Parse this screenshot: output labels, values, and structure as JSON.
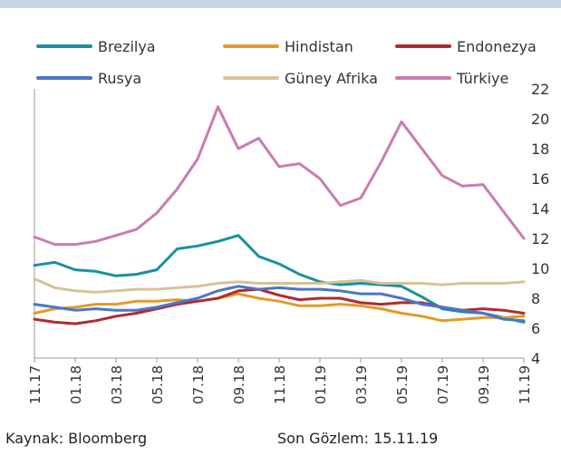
{
  "chart_data": {
    "type": "line",
    "title": "",
    "xlabel": "",
    "ylabel": "",
    "ylim": [
      4,
      22
    ],
    "yticks": [
      4,
      6,
      8,
      10,
      12,
      14,
      16,
      18,
      20,
      22
    ],
    "y_axis_side": "right",
    "legend_position": "top",
    "x_tick_labels": [
      "11.17",
      "01.18",
      "03.18",
      "05.18",
      "07.18",
      "09.18",
      "11.18",
      "01.19",
      "03.19",
      "05.19",
      "07.19",
      "09.19",
      "11.19"
    ],
    "x_tick_index": [
      0,
      2,
      4,
      6,
      8,
      10,
      12,
      14,
      16,
      18,
      20,
      22,
      24
    ],
    "x": [
      "11.17",
      "12.17",
      "01.18",
      "02.18",
      "03.18",
      "04.18",
      "05.18",
      "06.18",
      "07.18",
      "08.18",
      "09.18",
      "10.18",
      "11.18",
      "12.18",
      "01.19",
      "02.19",
      "03.19",
      "04.19",
      "05.19",
      "06.19",
      "07.19",
      "08.19",
      "09.19",
      "10.19",
      "11.19"
    ],
    "series": [
      {
        "name": "Brezilya",
        "color": "#1a8fa3",
        "values": [
          10.2,
          10.4,
          9.9,
          9.8,
          9.5,
          9.6,
          9.9,
          11.3,
          11.5,
          11.8,
          12.2,
          10.8,
          10.3,
          9.6,
          9.1,
          8.9,
          9.0,
          8.9,
          8.8,
          8.1,
          7.3,
          7.1,
          7.0,
          6.7,
          6.4
        ]
      },
      {
        "name": "Hindistan",
        "color": "#e39a2b",
        "values": [
          7.0,
          7.3,
          7.4,
          7.6,
          7.6,
          7.8,
          7.8,
          7.9,
          7.8,
          8.0,
          8.3,
          8.0,
          7.8,
          7.5,
          7.5,
          7.6,
          7.5,
          7.3,
          7.0,
          6.8,
          6.5,
          6.6,
          6.7,
          6.7,
          6.8
        ]
      },
      {
        "name": "Endonezya",
        "color": "#b22a2e",
        "values": [
          6.6,
          6.4,
          6.3,
          6.5,
          6.8,
          7.0,
          7.3,
          7.6,
          7.8,
          8.0,
          8.5,
          8.6,
          8.2,
          7.9,
          8.0,
          8.0,
          7.7,
          7.6,
          7.7,
          7.7,
          7.4,
          7.2,
          7.3,
          7.2,
          7.0
        ]
      },
      {
        "name": "Rusya",
        "color": "#4a76c6",
        "values": [
          7.6,
          7.4,
          7.2,
          7.3,
          7.2,
          7.2,
          7.4,
          7.7,
          8.0,
          8.5,
          8.8,
          8.6,
          8.7,
          8.6,
          8.6,
          8.5,
          8.3,
          8.3,
          8.0,
          7.6,
          7.4,
          7.2,
          7.0,
          6.6,
          6.5
        ]
      },
      {
        "name": "Güney Afrika",
        "color": "#d7c197",
        "values": [
          9.3,
          8.7,
          8.5,
          8.4,
          8.5,
          8.6,
          8.6,
          8.7,
          8.8,
          9.0,
          9.1,
          9.0,
          9.0,
          9.0,
          9.0,
          9.1,
          9.2,
          9.0,
          9.0,
          9.0,
          8.9,
          9.0,
          9.0,
          9.0,
          9.1
        ]
      },
      {
        "name": "Türkiye",
        "color": "#c97cb3",
        "values": [
          12.1,
          11.6,
          11.6,
          11.8,
          12.2,
          12.6,
          13.7,
          15.3,
          17.3,
          20.8,
          18.0,
          18.7,
          16.8,
          17.0,
          16.0,
          14.2,
          14.7,
          17.1,
          19.8,
          18.0,
          16.2,
          15.5,
          15.6,
          13.8,
          12.0
        ]
      }
    ]
  },
  "footer": {
    "source": "Kaynak: Bloomberg",
    "last_observation": "Son Gözlem: 15.11.19"
  }
}
